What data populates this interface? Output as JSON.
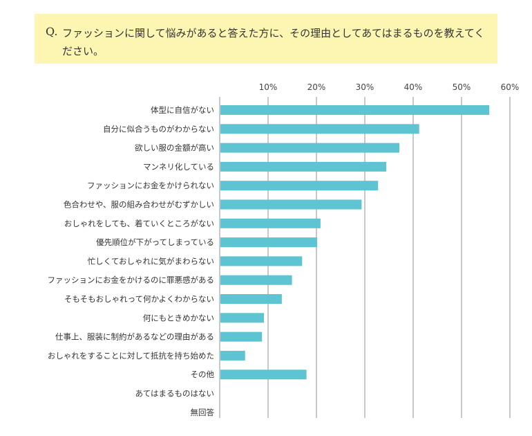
{
  "question": {
    "mark": "Q.",
    "text": "ファッションに関して悩みがあると答えた方に、その理由としてあてはまるものを教えてください。"
  },
  "chart_data": {
    "type": "bar",
    "orientation": "horizontal",
    "title": "ファッションに関して悩みがあると答えた方に、その理由としてあてはまるものを教えてください。",
    "xlabel": "",
    "ylabel": "",
    "xlim": [
      0,
      60
    ],
    "xticks": [
      10,
      20,
      30,
      40,
      50,
      60
    ],
    "xtick_labels": [
      "10%",
      "20%",
      "30%",
      "40%",
      "50%",
      "60%"
    ],
    "grid": true,
    "bar_color": "#5ec4d1",
    "categories": [
      "体型に自信がない",
      "自分に似合うものがわからない",
      "欲しい服の金額が高い",
      "マンネリ化している",
      "ファッションにお金をかけられない",
      "色合わせや、服の組み合わせがむずかしい",
      "おしゃれをしても、着ていくところがない",
      "優先順位が下がってしまっている",
      "忙しくておしゃれに気がまわらない",
      "ファッションにお金をかけるのに罪悪感がある",
      "そもそもおしゃれって何かよくわからない",
      "何にもときめかない",
      "仕事上、服装に制約があるなどの理由がある",
      "おしゃれをすることに対して抵抗を持ち始めた",
      "その他",
      "あてはまるものはない",
      "無回答"
    ],
    "values": [
      55.6,
      41.1,
      37.0,
      34.3,
      32.6,
      29.2,
      20.7,
      20.0,
      16.9,
      14.8,
      12.7,
      9.0,
      8.6,
      5.1,
      17.8,
      0,
      0
    ]
  }
}
